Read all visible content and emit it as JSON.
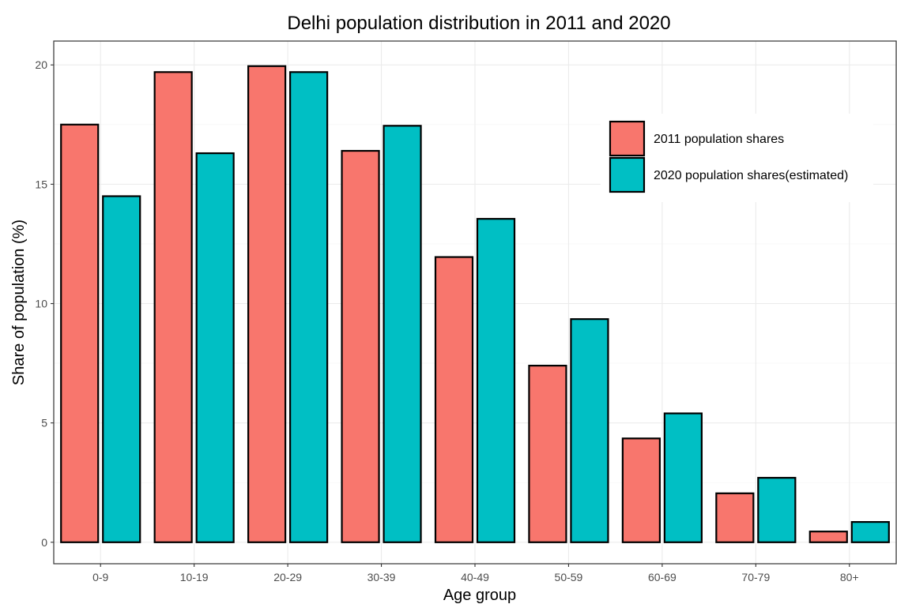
{
  "chart_data": {
    "type": "bar",
    "title": "Delhi population distribution in 2011 and 2020",
    "xlabel": "Age group",
    "ylabel": "Share of population (%)",
    "categories": [
      "0-9",
      "10-19",
      "20-29",
      "30-39",
      "40-49",
      "50-59",
      "60-69",
      "70-79",
      "80+"
    ],
    "series": [
      {
        "name": "2011 population shares",
        "color": "#F8766D",
        "values": [
          17.5,
          19.7,
          19.95,
          16.4,
          11.95,
          7.4,
          4.35,
          2.05,
          0.45
        ]
      },
      {
        "name": "2020 population shares(estimated)",
        "color": "#00BFC4",
        "values": [
          14.5,
          16.3,
          19.7,
          17.45,
          13.55,
          9.35,
          5.4,
          2.7,
          0.85
        ]
      }
    ],
    "ylim": [
      -0.9,
      21.0
    ],
    "yticks": [
      0,
      5,
      10,
      15,
      20
    ],
    "grid": true,
    "legend_position": "top-right"
  }
}
